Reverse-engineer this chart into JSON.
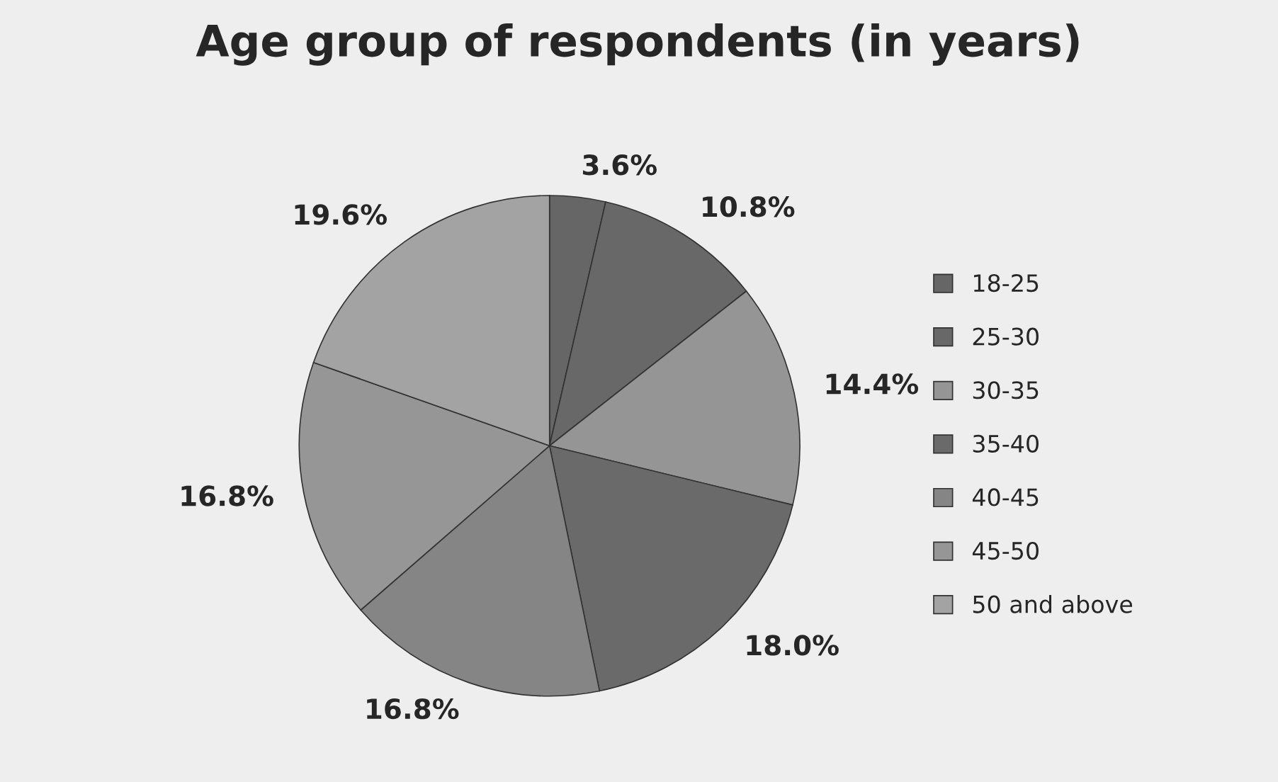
{
  "chart_data": {
    "type": "pie",
    "title": "Age group of respondents (in years)",
    "categories": [
      "18-25",
      "25-30",
      "30-35",
      "35-40",
      "40-45",
      "45-50",
      "50 and above"
    ],
    "values": [
      3.6,
      10.8,
      14.4,
      18.0,
      16.8,
      16.8,
      19.6
    ],
    "value_labels": [
      "3.6%",
      "10.8%",
      "14.4%",
      "18.0%",
      "16.8%",
      "16.8%",
      "19.6%"
    ],
    "colors": [
      "#666666",
      "#686868",
      "#959595",
      "#6a6a6a",
      "#858585",
      "#969696",
      "#a3a3a3"
    ],
    "legend": "right"
  }
}
